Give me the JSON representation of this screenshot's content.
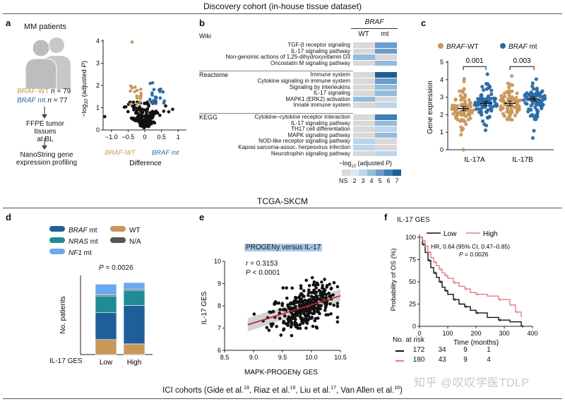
{
  "header": {
    "discovery": "Discovery cohort (in-house tissue dataset)",
    "tcga": "TCGA-SKCM",
    "ici_prefix": "ICI cohorts (Gide et al.",
    "ici_ref1": "18",
    "ici_mid1": ", Riaz et al.",
    "ici_ref2": "19",
    "ici_mid2": ", Liu et al.",
    "ici_ref3": "17",
    "ici_mid3": ", Van Allen et al.",
    "ici_ref4": "16",
    "ici_suffix": ")",
    "watermark": "知乎 @叹叹学医TDLP"
  },
  "panels": {
    "a": "a",
    "b": "b",
    "c": "c",
    "d": "d",
    "e": "e",
    "f": "f"
  },
  "panel_a": {
    "patients": "MM patients",
    "wt_label": "BRAF",
    "wt_suffix": "-WT ",
    "wt_n": "n",
    "wt_count": " = 79",
    "mt_label": "BRAF",
    "mt_suffix": " mt ",
    "mt_n": "n",
    "mt_count": " = 77",
    "step1_line1": "FFPE tumor tissues",
    "step1_line2": "at BL",
    "step2_line1": "NanoString gene",
    "step2_line2": "expression profiling",
    "volcano": {
      "ylabel": "−log10 (adjusted P)",
      "xlabel": "Difference",
      "wt_lab": "BRAF-WT",
      "mt_lab": "BRAF mt",
      "xticks": [
        "−1.0",
        "−0.5",
        "0",
        "0.5",
        "1"
      ],
      "yticks": [
        "0",
        "1",
        "2",
        "3",
        "4"
      ],
      "colors": {
        "wt": "#c9975a",
        "mt": "#2a6aa5",
        "ns": "#111111"
      }
    }
  },
  "panel_b": {
    "gene": "BRAF",
    "col_wt": "WT",
    "col_mt": "mt",
    "groups": [
      {
        "name": "Wiki",
        "rows": [
          "TGF-β receptor signaling",
          "IL-17 signaling pathway",
          "Non-genomic actions of 1,25-dihydroxyvitamin D3",
          "Oncostatin M signaling pathway"
        ]
      },
      {
        "name": "Reactome",
        "rows": [
          "Immune system",
          "Cytokine signaling in immune system",
          "Signaling by interleukins",
          "IL-17 signaling",
          "MAPK1 (ERK2) activation",
          "Innate immune system"
        ]
      },
      {
        "name": "KEGG",
        "rows": [
          "Cytokine–cytokine receptor interaction",
          "IL-17 signaling pathway",
          "TH17 cell differentiation",
          "MAPK signaling pathway",
          "NOD-like receptor signaling pathway",
          "Kaposi sarcoma-assoc. herpesvirus infection",
          "Neurotrophin signaling pathway"
        ]
      }
    ],
    "heat": [
      [
        0,
        4
      ],
      [
        0,
        4
      ],
      [
        3,
        0
      ],
      [
        0,
        3
      ],
      [
        0,
        6
      ],
      [
        0,
        4
      ],
      [
        0,
        3
      ],
      [
        0,
        3
      ],
      [
        3,
        0
      ],
      [
        0,
        2
      ],
      [
        0,
        5
      ],
      [
        0,
        3
      ],
      [
        0,
        2
      ],
      [
        0,
        3
      ],
      [
        2,
        0
      ],
      [
        2,
        0
      ],
      [
        0,
        2
      ]
    ],
    "legend_title": "−log10 (adjusted P)",
    "legend_ticks": [
      "NS",
      "2",
      "3",
      "4",
      "5",
      "6",
      "7"
    ],
    "legend_colors": [
      "#d9d9d9",
      "#dce9f4",
      "#bcd5ea",
      "#95bbdc",
      "#6a9dcb",
      "#3f7db6",
      "#1e5d98"
    ]
  },
  "panel_c": {
    "legend_wt": "BRAF",
    "legend_wt_suffix": "-WT",
    "legend_mt": "BRAF",
    "legend_mt_suffix": " mt",
    "ylabel": "Gene expression",
    "yticks": [
      "0",
      "1",
      "2",
      "3",
      "4",
      "5"
    ],
    "groups": [
      "IL-17A",
      "IL-17B"
    ],
    "pvalues": [
      "0.001",
      "0.003"
    ],
    "chart_data": {
      "type": "scatter",
      "categories": [
        "IL-17A",
        "IL-17B"
      ],
      "series": [
        {
          "name": "BRAF-WT",
          "mean": [
            2.35,
            2.65
          ],
          "color": "#c9975a"
        },
        {
          "name": "BRAF mt",
          "mean": [
            2.65,
            2.9
          ],
          "color": "#2a6aa5"
        }
      ],
      "ylim": [
        0,
        5
      ]
    }
  },
  "panel_d": {
    "legend": [
      {
        "label": "BRAF",
        "suffix": " mt",
        "color": "#1f5f99"
      },
      {
        "label": "WT",
        "suffix": "",
        "color": "#c9975a"
      },
      {
        "label": "NRAS",
        "suffix": " mt",
        "color": "#1f8c95"
      },
      {
        "label": "N/A",
        "suffix": "",
        "color": "#555555"
      },
      {
        "label": "NF1",
        "suffix": " mt",
        "color": "#6aa9ef"
      }
    ],
    "pvalue": "P = 0.0026",
    "ylabel": "No. patients",
    "xlabel": "IL-17 GES",
    "chart_data": {
      "type": "bar",
      "categories": [
        "Low",
        "High"
      ],
      "series": [
        {
          "name": "WT",
          "values": [
            38,
            27
          ],
          "color": "#c9975a"
        },
        {
          "name": "BRAF mt",
          "values": [
            68,
            97
          ],
          "color": "#1f5f99"
        },
        {
          "name": "NRAS mt",
          "values": [
            42,
            38
          ],
          "color": "#1f8c95"
        },
        {
          "name": "N/A",
          "values": [
            3,
            3
          ],
          "color": "#555555"
        },
        {
          "name": "NF1 mt",
          "values": [
            27,
            17
          ],
          "color": "#6aa9ef"
        }
      ],
      "ylim": [
        0,
        200
      ]
    }
  },
  "panel_e": {
    "title": "PROGENy versus IL-17",
    "r_text": "r = 0.3153",
    "p_text": "P < 0.0001",
    "ylabel": "IL-17 GES",
    "xlabel": "MAPK-PROGENy GES",
    "xticks": [
      "8.5",
      "9.0",
      "9.5",
      "10.0",
      "10.5"
    ],
    "yticks": [
      "6",
      "7",
      "8",
      "9",
      "10"
    ],
    "chart_data": {
      "type": "scatter",
      "xlim": [
        8.5,
        10.5
      ],
      "ylim": [
        6,
        10
      ],
      "fit": {
        "x": [
          8.9,
          10.5
        ],
        "y": [
          7.15,
          8.45
        ]
      }
    }
  },
  "panel_f": {
    "title": "IL-17 GES",
    "legend_low": "Low",
    "legend_high": "High",
    "hr": "HR, 0.64 (95% CI, 0.47–0.85)",
    "pval": "P = 0.0026",
    "ylabel": "Probability of OS (%)",
    "xlabel": "Time (months)",
    "xticks": [
      "0",
      "100",
      "200",
      "300",
      "400"
    ],
    "yticks": [
      "0",
      "25",
      "50",
      "75",
      "100"
    ],
    "at_risk": "No. at risk",
    "risk_low": [
      "172",
      "34",
      "9",
      "1"
    ],
    "risk_high": [
      "180",
      "43",
      "9",
      "4"
    ],
    "colors": {
      "low": "#111111",
      "high": "#e87c86"
    },
    "chart_data": {
      "type": "line",
      "series": [
        {
          "name": "Low",
          "x": [
            0,
            10,
            20,
            30,
            40,
            50,
            60,
            70,
            80,
            90,
            100,
            120,
            140,
            160,
            180,
            200,
            240,
            280,
            320,
            360
          ],
          "y": [
            100,
            92,
            83,
            74,
            66,
            60,
            55,
            50,
            44,
            40,
            36,
            30,
            25,
            22,
            18,
            15,
            10,
            7,
            5,
            0
          ]
        },
        {
          "name": "High",
          "x": [
            0,
            10,
            20,
            30,
            40,
            50,
            60,
            70,
            80,
            90,
            100,
            120,
            140,
            160,
            180,
            200,
            240,
            280,
            320,
            340,
            360
          ],
          "y": [
            100,
            96,
            90,
            83,
            77,
            72,
            68,
            64,
            60,
            57,
            54,
            49,
            45,
            42,
            38,
            36,
            34,
            30,
            24,
            16,
            10
          ]
        }
      ],
      "xlim": [
        0,
        400
      ],
      "ylim": [
        0,
        100
      ]
    }
  }
}
